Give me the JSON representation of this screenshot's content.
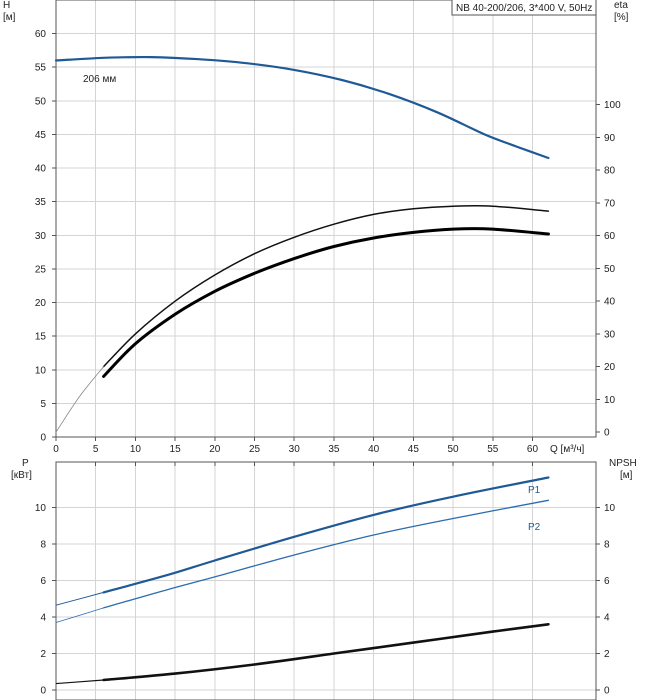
{
  "chart_data": [
    {
      "type": "line",
      "panel": "head-efficiency",
      "title": "NB 40-200/206, 3*400 V, 50Hz",
      "left_axis": {
        "label_line1": "H",
        "label_line2": "[м]",
        "ticks": [
          0,
          5,
          10,
          15,
          20,
          25,
          30,
          35,
          40,
          45,
          50,
          55,
          60
        ],
        "range": [
          0,
          65
        ]
      },
      "right_axis": {
        "label_line1": "eta",
        "label_line2": "[%]",
        "ticks": [
          0,
          10,
          20,
          30,
          40,
          50,
          60,
          70,
          80,
          90,
          100
        ],
        "range": [
          -1.5,
          132
        ]
      },
      "x_axis": {
        "label": "Q [м³/ч]",
        "ticks": [
          0,
          5,
          10,
          15,
          20,
          25,
          30,
          35,
          40,
          45,
          50,
          55,
          60
        ],
        "range": [
          0,
          68
        ]
      },
      "annotation": "206 мм",
      "series": [
        {
          "name": "H",
          "axis": "left",
          "color": "#1f5a96",
          "width": 2.2,
          "x": [
            0,
            6,
            12,
            18,
            24,
            30,
            36,
            42,
            48,
            54,
            58,
            62
          ],
          "y": [
            56.0,
            56.4,
            56.5,
            56.2,
            55.6,
            54.6,
            53.1,
            51.0,
            48.3,
            45.0,
            43.2,
            41.5
          ]
        },
        {
          "name": "eta",
          "axis": "right",
          "color": "#111111",
          "width": 1.5,
          "x": [
            6,
            10,
            15,
            20,
            25,
            30,
            35,
            40,
            45,
            50,
            55,
            62
          ],
          "y": [
            20,
            30,
            40,
            48,
            54.5,
            59.5,
            63.5,
            66.5,
            68.2,
            69,
            69,
            67.5
          ]
        },
        {
          "name": "eta-hydraulic",
          "axis": "right",
          "color": "#000000",
          "width": 3,
          "x": [
            6,
            10,
            15,
            20,
            25,
            30,
            35,
            40,
            45,
            50,
            55,
            62
          ],
          "y": [
            17,
            27,
            36,
            43,
            48.5,
            53,
            56.7,
            59.3,
            61,
            62,
            62,
            60.5
          ]
        },
        {
          "name": "eta-extension",
          "axis": "right",
          "color": "#888888",
          "width": 0.8,
          "x": [
            0,
            3,
            6
          ],
          "y": [
            0,
            11,
            20
          ]
        }
      ]
    },
    {
      "type": "line",
      "panel": "power-npsh",
      "left_axis": {
        "label_line1": "P",
        "label_line2": "[кВт]",
        "ticks": [
          0,
          2,
          4,
          6,
          8,
          10
        ],
        "range": [
          0,
          12.5
        ]
      },
      "right_axis": {
        "label_line1": "NPSH",
        "label_line2": "[м]",
        "ticks": [
          0,
          2,
          4,
          6,
          8,
          10
        ],
        "range": [
          0,
          12.5
        ]
      },
      "x_axis": {
        "range": [
          0,
          68
        ]
      },
      "series": [
        {
          "name": "P1",
          "axis": "left",
          "color": "#1f5a96",
          "width": 2.2,
          "x": [
            0,
            6,
            14,
            20,
            30,
            40,
            50,
            62
          ],
          "y": [
            4.65,
            5.35,
            6.3,
            7.1,
            8.4,
            9.6,
            10.6,
            11.65
          ]
        },
        {
          "name": "P2",
          "axis": "left",
          "color": "#2a6cb0",
          "width": 1.3,
          "x": [
            0,
            6,
            14,
            20,
            30,
            40,
            50,
            62
          ],
          "y": [
            3.7,
            4.5,
            5.5,
            6.2,
            7.4,
            8.5,
            9.4,
            10.4
          ]
        },
        {
          "name": "NPSH",
          "axis": "right",
          "color": "#111111",
          "width": 2.6,
          "x": [
            0,
            6,
            15,
            25,
            35,
            45,
            55,
            62
          ],
          "y": [
            0.35,
            0.55,
            0.9,
            1.4,
            2.0,
            2.6,
            3.2,
            3.6
          ]
        }
      ]
    }
  ]
}
